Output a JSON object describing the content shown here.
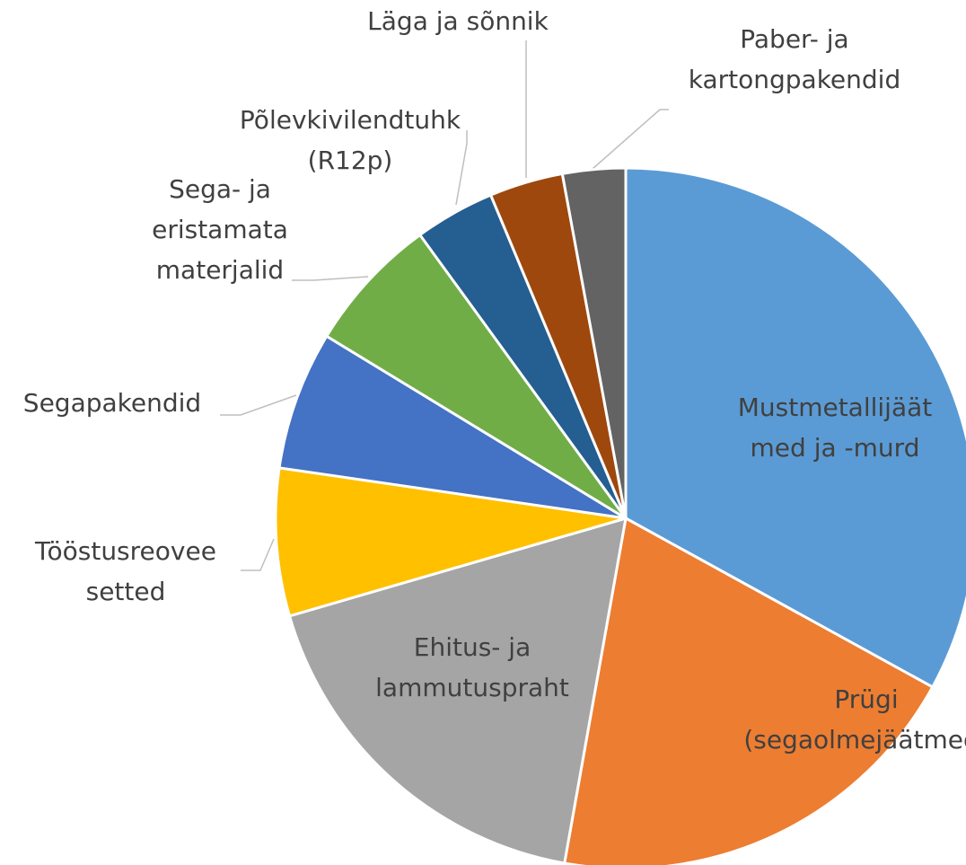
{
  "chart_data": {
    "type": "pie",
    "categories": [
      [
        "Mustmetallijäät",
        "med ja -murd"
      ],
      [
        "Prügi",
        "(segaolmejäätmed)"
      ],
      [
        "Ehitus- ja",
        "lammutuspraht"
      ],
      [
        "Tööstusreovee",
        "setted"
      ],
      [
        "Segapakendid"
      ],
      [
        "Sega- ja",
        "eristamata",
        "materjalid"
      ],
      [
        "Põlevkivilendtuhk",
        "(R12p)"
      ],
      [
        "Läga ja sõnnik"
      ],
      [
        "Paber- ja",
        "kartongpakendid"
      ]
    ],
    "values": [
      33,
      19.8,
      17.7,
      6.8,
      6.4,
      6.3,
      3.7,
      3.4,
      2.9
    ],
    "colors": [
      "#5b9bd5",
      "#ed7d31",
      "#a5a5a5",
      "#ffc000",
      "#4472c4",
      "#70ad47",
      "#255e91",
      "#9e480e",
      "#636363"
    ]
  }
}
